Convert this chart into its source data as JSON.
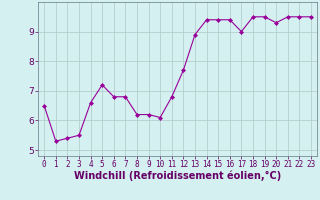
{
  "x": [
    0,
    1,
    2,
    3,
    4,
    5,
    6,
    7,
    8,
    9,
    10,
    11,
    12,
    13,
    14,
    15,
    16,
    17,
    18,
    19,
    20,
    21,
    22,
    23
  ],
  "y": [
    6.5,
    5.3,
    5.4,
    5.5,
    6.6,
    7.2,
    6.8,
    6.8,
    6.2,
    6.2,
    6.1,
    6.8,
    7.7,
    8.9,
    9.4,
    9.4,
    9.4,
    9.0,
    9.5,
    9.5,
    9.3,
    9.5,
    9.5,
    9.5
  ],
  "ylim": [
    4.8,
    10.0
  ],
  "xlim": [
    -0.5,
    23.5
  ],
  "line_color": "#990099",
  "marker": "D",
  "marker_size": 2,
  "bg_color": "#d4f0f0",
  "grid_color": "#b0c8c8",
  "xlabel": "Windchill (Refroidissement éolien,°C)",
  "yticks": [
    5,
    6,
    7,
    8,
    9
  ],
  "xticks": [
    0,
    1,
    2,
    3,
    4,
    5,
    6,
    7,
    8,
    9,
    10,
    11,
    12,
    13,
    14,
    15,
    16,
    17,
    18,
    19,
    20,
    21,
    22,
    23
  ],
  "tick_label_size": 5.5,
  "xlabel_size": 7.0,
  "ylabel_size": 7.0,
  "label_color": "#660066"
}
